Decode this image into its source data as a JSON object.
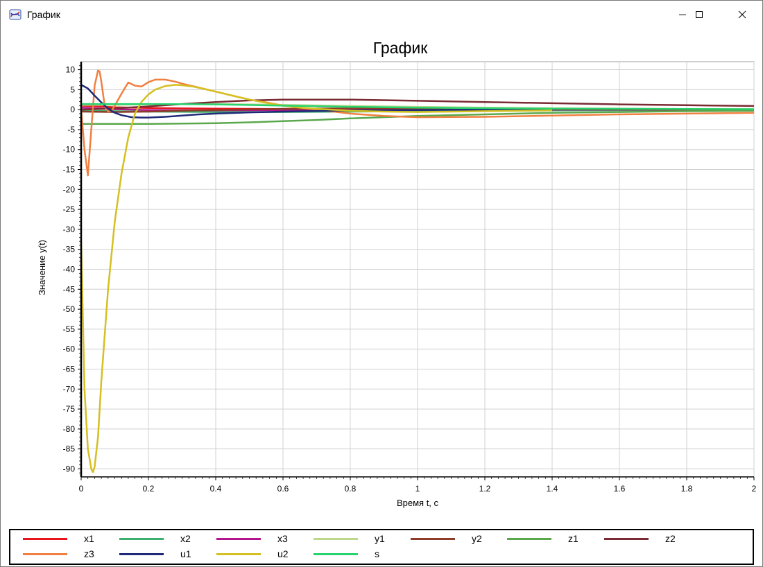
{
  "window": {
    "title": "График",
    "icon": "chart-app-icon"
  },
  "chart_data": {
    "type": "line",
    "title": "График",
    "xlabel": "Время t, с",
    "ylabel": "Значение y(t)",
    "xlim": [
      0,
      2
    ],
    "ylim": [
      -92,
      12
    ],
    "grid": true,
    "legend_position": "bottom",
    "x_ticks": [
      0,
      0.2,
      0.4,
      0.6,
      0.8,
      1,
      1.2,
      1.4,
      1.6,
      1.8,
      2
    ],
    "x_tick_labels": [
      "0",
      "0.2",
      "0.4",
      "0.6",
      "0.8",
      "1",
      "1.2",
      "1.4",
      "1.6",
      "1.8",
      "2"
    ],
    "y_ticks": [
      10,
      5,
      0,
      -5,
      -10,
      -15,
      -20,
      -25,
      -30,
      -35,
      -40,
      -45,
      -50,
      -55,
      -60,
      -65,
      -70,
      -75,
      -80,
      -85,
      -90
    ],
    "y_tick_labels": [
      "10",
      "5",
      "0",
      "-5",
      "-10",
      "-15",
      "-20",
      "-25",
      "-30",
      "-35",
      "-40",
      "-45",
      "-50",
      "-55",
      "-60",
      "-65",
      "-70",
      "-75",
      "-80",
      "-85",
      "-90"
    ],
    "series": [
      {
        "name": "x1",
        "color": "#e8141e",
        "x": [
          0,
          0.05,
          0.1,
          0.15,
          0.2,
          0.3,
          0.4,
          0.6,
          0.8,
          1.0,
          1.4,
          2.0
        ],
        "y": [
          1.0,
          0.8,
          0.6,
          0.5,
          0.4,
          0.3,
          0.25,
          0.15,
          0.1,
          0.05,
          0.02,
          0.0
        ]
      },
      {
        "name": "x2",
        "color": "#3cae6e",
        "x": [
          0,
          0.2,
          0.4,
          0.6,
          0.8,
          1.0,
          1.2,
          1.4,
          1.6,
          1.8,
          2.0
        ],
        "y": [
          -0.3,
          -0.5,
          -0.6,
          -0.6,
          -0.5,
          -0.4,
          -0.3,
          -0.2,
          -0.15,
          -0.1,
          -0.05
        ]
      },
      {
        "name": "x3",
        "color": "#b4148c",
        "x": [
          0,
          0.05,
          0.1,
          0.2,
          0.3,
          0.4,
          0.6,
          0.8,
          1.0,
          2.0
        ],
        "y": [
          0.5,
          0.3,
          0.1,
          -0.1,
          -0.2,
          -0.2,
          -0.1,
          -0.05,
          0.0,
          0.0
        ]
      },
      {
        "name": "y1",
        "color": "#bcd88c",
        "x": [
          0,
          0.1,
          0.2,
          0.3,
          0.4,
          0.5,
          0.6,
          0.8,
          1.0,
          1.2,
          1.4,
          1.6,
          1.8,
          2.0
        ],
        "y": [
          1.2,
          1.2,
          1.3,
          1.4,
          1.4,
          1.3,
          1.2,
          0.9,
          0.7,
          0.5,
          0.35,
          0.25,
          0.15,
          0.1
        ]
      },
      {
        "name": "y2",
        "color": "#8c3c28",
        "x": [
          0,
          0.1,
          0.2,
          0.3,
          0.4,
          0.6,
          0.8,
          1.0,
          1.2,
          1.4,
          1.6,
          1.8,
          2.0
        ],
        "y": [
          -0.5,
          -0.6,
          -0.5,
          -0.3,
          -0.1,
          0.2,
          0.3,
          0.3,
          0.2,
          0.1,
          0.05,
          0.0,
          0.0
        ]
      },
      {
        "name": "z1",
        "color": "#5aa84c",
        "x": [
          0,
          0.2,
          0.4,
          0.5,
          0.6,
          0.7,
          0.8,
          1.0,
          1.2,
          1.4,
          1.6,
          1.8,
          2.0
        ],
        "y": [
          -3.6,
          -3.6,
          -3.4,
          -3.2,
          -2.9,
          -2.6,
          -2.2,
          -1.6,
          -1.2,
          -0.8,
          -0.6,
          -0.4,
          -0.3
        ]
      },
      {
        "name": "z2",
        "color": "#7a2a32",
        "x": [
          0,
          0.1,
          0.2,
          0.3,
          0.4,
          0.5,
          0.6,
          0.7,
          0.8,
          1.0,
          1.2,
          1.4,
          1.6,
          1.8,
          2.0
        ],
        "y": [
          0.0,
          0.3,
          0.8,
          1.4,
          1.9,
          2.3,
          2.5,
          2.5,
          2.5,
          2.2,
          1.9,
          1.6,
          1.3,
          1.1,
          0.9
        ]
      },
      {
        "name": "z3",
        "color": "#f08040",
        "x": [
          0,
          0.01,
          0.02,
          0.03,
          0.04,
          0.05,
          0.055,
          0.06,
          0.07,
          0.08,
          0.09,
          0.1,
          0.12,
          0.14,
          0.16,
          0.18,
          0.2,
          0.22,
          0.25,
          0.28,
          0.3,
          0.35,
          0.4,
          0.45,
          0.5,
          0.55,
          0.6,
          0.65,
          0.7,
          0.8,
          0.9,
          1.0,
          1.2,
          1.4,
          1.6,
          1.8,
          2.0
        ],
        "y": [
          0,
          -10,
          -16.5,
          -5,
          6,
          9.8,
          9.5,
          7,
          1,
          -0.5,
          -0.3,
          1.0,
          4.0,
          6.8,
          6.0,
          5.8,
          6.9,
          7.5,
          7.5,
          7.0,
          6.5,
          5.5,
          4.5,
          3.5,
          2.5,
          1.8,
          1.0,
          0.5,
          0.0,
          -1.0,
          -1.6,
          -1.9,
          -1.8,
          -1.5,
          -1.2,
          -1.0,
          -0.8
        ]
      },
      {
        "name": "u1",
        "color": "#1e2a78",
        "x": [
          0,
          0.02,
          0.04,
          0.06,
          0.08,
          0.1,
          0.12,
          0.15,
          0.18,
          0.2,
          0.25,
          0.3,
          0.35,
          0.4,
          0.5,
          0.6,
          0.8,
          1.0,
          1.2,
          1.4
        ],
        "y": [
          6.2,
          5.3,
          3.5,
          1.8,
          0.2,
          -0.8,
          -1.4,
          -1.9,
          -2.0,
          -2.0,
          -1.8,
          -1.5,
          -1.2,
          -1.0,
          -0.7,
          -0.5,
          -0.2,
          -0.1,
          0.0,
          0.0
        ]
      },
      {
        "name": "u2",
        "color": "#d4c020",
        "x": [
          0,
          0.01,
          0.02,
          0.03,
          0.035,
          0.04,
          0.05,
          0.06,
          0.08,
          0.1,
          0.12,
          0.14,
          0.16,
          0.18,
          0.2,
          0.22,
          0.25,
          0.28,
          0.3,
          0.33,
          0.36,
          0.4,
          0.45,
          0.5,
          0.55,
          0.6,
          0.65,
          0.7,
          0.8,
          0.9,
          1.0,
          1.2,
          1.4
        ],
        "y": [
          -33,
          -70,
          -85,
          -90,
          -90.8,
          -89.5,
          -82,
          -68,
          -45,
          -28,
          -16,
          -7,
          -1,
          2,
          3.8,
          5,
          5.9,
          6.2,
          6.1,
          5.8,
          5.3,
          4.5,
          3.5,
          2.5,
          1.7,
          1.0,
          0.5,
          0.2,
          -0.3,
          -0.5,
          -0.6,
          -0.4,
          -0.2
        ]
      },
      {
        "name": "s",
        "color": "#28d26e",
        "x": [
          0,
          0.2,
          0.4,
          0.6,
          0.8,
          1.0,
          1.2,
          1.4,
          1.6,
          1.8,
          2.0
        ],
        "y": [
          1.4,
          1.4,
          1.3,
          1.0,
          0.7,
          0.5,
          0.35,
          0.25,
          0.2,
          0.15,
          0.1
        ]
      }
    ]
  }
}
